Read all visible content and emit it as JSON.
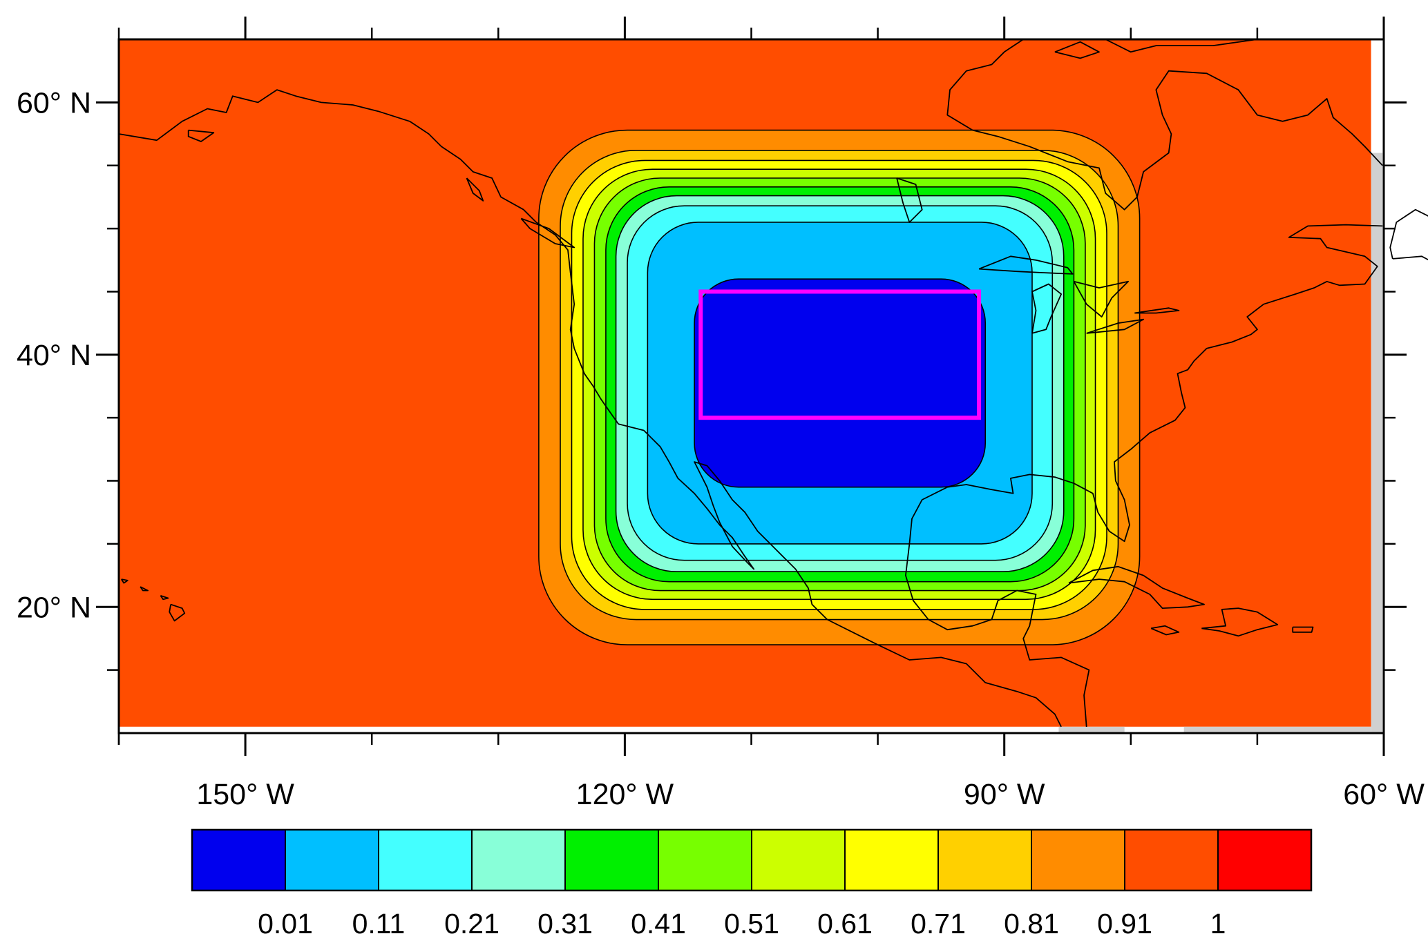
{
  "map": {
    "projection": "equirectangular",
    "lon_range": [
      -160,
      -60
    ],
    "lat_range": [
      10,
      65
    ],
    "background_color": "#ff4d00",
    "contour_line_color": "#000000",
    "coastline_color": "#000000",
    "frame_color": "#000000",
    "x_major_ticks": [
      {
        "lon": -150,
        "label": "150° W"
      },
      {
        "lon": -120,
        "label": "120° W"
      },
      {
        "lon": -90,
        "label": "90° W"
      },
      {
        "lon": -60,
        "label": "60° W"
      }
    ],
    "x_minor_ticks": [
      -160,
      -140,
      -130,
      -110,
      -100,
      -80,
      -70
    ],
    "y_major_ticks": [
      {
        "lat": 60,
        "label": "60° N"
      },
      {
        "lat": 40,
        "label": "40° N"
      },
      {
        "lat": 20,
        "label": "20° N"
      }
    ],
    "y_minor_ticks": [
      15,
      25,
      30,
      35,
      45,
      50,
      55
    ],
    "highlight_box": {
      "lon_min": -114,
      "lon_max": -92,
      "lat_min": 35,
      "lat_max": 45,
      "color": "#ff00ff"
    },
    "contour_levels": [
      {
        "lon_min": -114.5,
        "lon_max": -91.5,
        "lat_min": 29.5,
        "lat_max": 46.0,
        "corner": 3.5,
        "color": "#0000ee"
      },
      {
        "lon_min": -118.2,
        "lon_max": -87.8,
        "lat_min": 25.0,
        "lat_max": 50.5,
        "corner": 4.0,
        "color": "#00bfff"
      },
      {
        "lon_min": -119.8,
        "lon_max": -86.2,
        "lat_min": 23.7,
        "lat_max": 51.8,
        "corner": 4.5,
        "color": "#44ffff"
      },
      {
        "lon_min": -120.7,
        "lon_max": -85.3,
        "lat_min": 22.8,
        "lat_max": 52.6,
        "corner": 4.8,
        "color": "#88ffd8"
      },
      {
        "lon_min": -121.5,
        "lon_max": -84.5,
        "lat_min": 22.0,
        "lat_max": 53.3,
        "corner": 5.0,
        "color": "#00f000"
      },
      {
        "lon_min": -122.4,
        "lon_max": -83.6,
        "lat_min": 21.3,
        "lat_max": 54.0,
        "corner": 5.2,
        "color": "#77ff00"
      },
      {
        "lon_min": -123.3,
        "lon_max": -82.8,
        "lat_min": 20.6,
        "lat_max": 54.7,
        "corner": 5.5,
        "color": "#ccff00"
      },
      {
        "lon_min": -124.2,
        "lon_max": -81.9,
        "lat_min": 19.8,
        "lat_max": 55.4,
        "corner": 5.8,
        "color": "#ffff00"
      },
      {
        "lon_min": -125.1,
        "lon_max": -81.0,
        "lat_min": 19.0,
        "lat_max": 56.2,
        "corner": 6.0,
        "color": "#ffd000"
      },
      {
        "lon_min": -126.8,
        "lon_max": -79.3,
        "lat_min": 17.0,
        "lat_max": 57.8,
        "corner": 7.0,
        "color": "#ff8c00"
      }
    ]
  },
  "colorbar": {
    "colors": [
      "#0000ee",
      "#00bfff",
      "#44ffff",
      "#88ffd8",
      "#00f000",
      "#77ff00",
      "#ccff00",
      "#ffff00",
      "#ffd000",
      "#ff8c00",
      "#ff4d00",
      "#ff0000"
    ],
    "labels": [
      "0.01",
      "0.11",
      "0.21",
      "0.31",
      "0.41",
      "0.51",
      "0.61",
      "0.71",
      "0.81",
      "0.91",
      "1"
    ]
  }
}
